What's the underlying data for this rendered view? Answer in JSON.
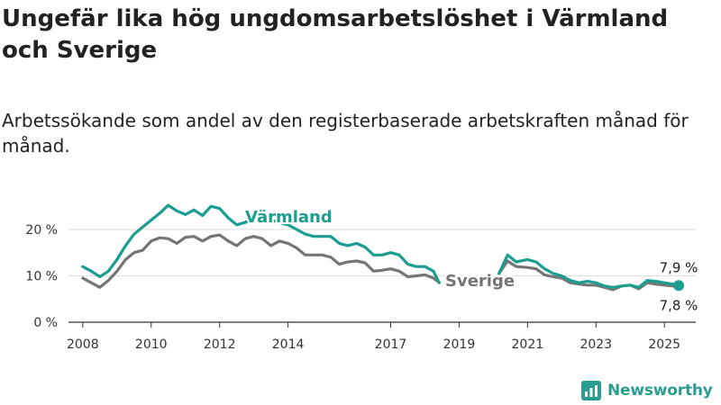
{
  "title": "Ungefär lika hög ungdomsarbetslöshet i Värmland och Sverige",
  "subtitle": "Arbetssökande som andel av den registerbaserade arbetskraften månad för månad.",
  "brand": {
    "name": "Newsworthy",
    "color": "#2a9d8f"
  },
  "colors": {
    "varmland": "#1a9e8f",
    "sverige": "#757575",
    "axis": "#333333",
    "grid": "#dddddd"
  },
  "chart_data": {
    "type": "line",
    "x_ticks": [
      "2008",
      "2010",
      "2012",
      "2014",
      "2017",
      "2019",
      "2021",
      "2023",
      "2025"
    ],
    "y_ticks": [
      "0 %",
      "10 %",
      "20 %"
    ],
    "ylim": [
      0,
      26
    ],
    "xlim": [
      "2007-08",
      "2025-12"
    ],
    "grid": true,
    "series": [
      {
        "name": "Värmland",
        "end_label": "7,9 %",
        "points": [
          {
            "x": "2008-01",
            "y": 12.0
          },
          {
            "x": "2008-04",
            "y": 11.0
          },
          {
            "x": "2008-07",
            "y": 9.8
          },
          {
            "x": "2008-10",
            "y": 11.0
          },
          {
            "x": "2009-01",
            "y": 13.5
          },
          {
            "x": "2009-04",
            "y": 16.5
          },
          {
            "x": "2009-07",
            "y": 19.0
          },
          {
            "x": "2009-10",
            "y": 20.5
          },
          {
            "x": "2010-01",
            "y": 22.0
          },
          {
            "x": "2010-04",
            "y": 23.5
          },
          {
            "x": "2010-07",
            "y": 25.2
          },
          {
            "x": "2010-10",
            "y": 24.0
          },
          {
            "x": "2011-01",
            "y": 23.2
          },
          {
            "x": "2011-04",
            "y": 24.2
          },
          {
            "x": "2011-07",
            "y": 23.0
          },
          {
            "x": "2011-10",
            "y": 25.0
          },
          {
            "x": "2012-01",
            "y": 24.5
          },
          {
            "x": "2012-04",
            "y": 22.5
          },
          {
            "x": "2012-07",
            "y": 21.0
          },
          {
            "x": "2012-10",
            "y": 21.5
          },
          {
            "x": "2013-01",
            "y": 22.5
          },
          {
            "x": "2013-04",
            "y": 23.0
          },
          {
            "x": "2013-07",
            "y": 22.0
          },
          {
            "x": "2013-10",
            "y": 21.5
          },
          {
            "x": "2014-01",
            "y": 21.0
          },
          {
            "x": "2014-04",
            "y": 20.0
          },
          {
            "x": "2014-07",
            "y": 19.0
          },
          {
            "x": "2014-10",
            "y": 18.5
          },
          {
            "x": "2015-01",
            "y": 18.5
          },
          {
            "x": "2015-04",
            "y": 18.5
          },
          {
            "x": "2015-07",
            "y": 17.0
          },
          {
            "x": "2015-10",
            "y": 16.5
          },
          {
            "x": "2016-01",
            "y": 17.0
          },
          {
            "x": "2016-04",
            "y": 16.2
          },
          {
            "x": "2016-07",
            "y": 14.5
          },
          {
            "x": "2016-10",
            "y": 14.5
          },
          {
            "x": "2017-01",
            "y": 15.0
          },
          {
            "x": "2017-04",
            "y": 14.5
          },
          {
            "x": "2017-07",
            "y": 12.5
          },
          {
            "x": "2017-10",
            "y": 12.0
          },
          {
            "x": "2018-01",
            "y": 12.0
          },
          {
            "x": "2018-04",
            "y": 11.0
          },
          {
            "x": "2018-06",
            "y": 8.5
          },
          {
            "x": "2020-03",
            "y": 10.5
          },
          {
            "x": "2020-06",
            "y": 14.5
          },
          {
            "x": "2020-09",
            "y": 13.0
          },
          {
            "x": "2021-01",
            "y": 13.5
          },
          {
            "x": "2021-04",
            "y": 13.0
          },
          {
            "x": "2021-07",
            "y": 11.5
          },
          {
            "x": "2021-10",
            "y": 10.5
          },
          {
            "x": "2022-01",
            "y": 10.0
          },
          {
            "x": "2022-04",
            "y": 9.0
          },
          {
            "x": "2022-07",
            "y": 8.5
          },
          {
            "x": "2022-10",
            "y": 8.8
          },
          {
            "x": "2023-01",
            "y": 8.5
          },
          {
            "x": "2023-04",
            "y": 7.8
          },
          {
            "x": "2023-07",
            "y": 7.5
          },
          {
            "x": "2023-10",
            "y": 7.8
          },
          {
            "x": "2024-01",
            "y": 8.0
          },
          {
            "x": "2024-04",
            "y": 7.5
          },
          {
            "x": "2024-07",
            "y": 9.0
          },
          {
            "x": "2024-10",
            "y": 8.8
          },
          {
            "x": "2025-01",
            "y": 8.5
          },
          {
            "x": "2025-04",
            "y": 8.2
          },
          {
            "x": "2025-06",
            "y": 7.9
          }
        ]
      },
      {
        "name": "Sverige",
        "end_label": "7,8 %",
        "points": [
          {
            "x": "2008-01",
            "y": 9.5
          },
          {
            "x": "2008-04",
            "y": 8.5
          },
          {
            "x": "2008-07",
            "y": 7.5
          },
          {
            "x": "2008-10",
            "y": 9.0
          },
          {
            "x": "2009-01",
            "y": 11.0
          },
          {
            "x": "2009-04",
            "y": 13.5
          },
          {
            "x": "2009-07",
            "y": 15.0
          },
          {
            "x": "2009-10",
            "y": 15.5
          },
          {
            "x": "2010-01",
            "y": 17.5
          },
          {
            "x": "2010-04",
            "y": 18.2
          },
          {
            "x": "2010-07",
            "y": 18.0
          },
          {
            "x": "2010-10",
            "y": 17.0
          },
          {
            "x": "2011-01",
            "y": 18.3
          },
          {
            "x": "2011-04",
            "y": 18.5
          },
          {
            "x": "2011-07",
            "y": 17.5
          },
          {
            "x": "2011-10",
            "y": 18.5
          },
          {
            "x": "2012-01",
            "y": 18.8
          },
          {
            "x": "2012-04",
            "y": 17.5
          },
          {
            "x": "2012-07",
            "y": 16.5
          },
          {
            "x": "2012-10",
            "y": 18.0
          },
          {
            "x": "2013-01",
            "y": 18.5
          },
          {
            "x": "2013-04",
            "y": 18.0
          },
          {
            "x": "2013-07",
            "y": 16.5
          },
          {
            "x": "2013-10",
            "y": 17.5
          },
          {
            "x": "2014-01",
            "y": 17.0
          },
          {
            "x": "2014-04",
            "y": 16.0
          },
          {
            "x": "2014-07",
            "y": 14.5
          },
          {
            "x": "2014-10",
            "y": 14.5
          },
          {
            "x": "2015-01",
            "y": 14.5
          },
          {
            "x": "2015-04",
            "y": 14.0
          },
          {
            "x": "2015-07",
            "y": 12.5
          },
          {
            "x": "2015-10",
            "y": 13.0
          },
          {
            "x": "2016-01",
            "y": 13.2
          },
          {
            "x": "2016-04",
            "y": 12.8
          },
          {
            "x": "2016-07",
            "y": 11.0
          },
          {
            "x": "2016-10",
            "y": 11.2
          },
          {
            "x": "2017-01",
            "y": 11.5
          },
          {
            "x": "2017-04",
            "y": 11.0
          },
          {
            "x": "2017-07",
            "y": 9.8
          },
          {
            "x": "2017-10",
            "y": 10.0
          },
          {
            "x": "2018-01",
            "y": 10.2
          },
          {
            "x": "2018-04",
            "y": 9.5
          },
          {
            "x": "2018-06",
            "y": 8.6
          },
          {
            "x": "2020-03",
            "y": 10.5
          },
          {
            "x": "2020-06",
            "y": 13.2
          },
          {
            "x": "2020-09",
            "y": 12.0
          },
          {
            "x": "2021-01",
            "y": 11.8
          },
          {
            "x": "2021-04",
            "y": 11.5
          },
          {
            "x": "2021-07",
            "y": 10.2
          },
          {
            "x": "2021-10",
            "y": 9.8
          },
          {
            "x": "2022-01",
            "y": 9.5
          },
          {
            "x": "2022-04",
            "y": 8.5
          },
          {
            "x": "2022-07",
            "y": 8.2
          },
          {
            "x": "2022-10",
            "y": 8.0
          },
          {
            "x": "2023-01",
            "y": 8.0
          },
          {
            "x": "2023-04",
            "y": 7.5
          },
          {
            "x": "2023-07",
            "y": 7.0
          },
          {
            "x": "2023-10",
            "y": 7.8
          },
          {
            "x": "2024-01",
            "y": 8.0
          },
          {
            "x": "2024-04",
            "y": 7.2
          },
          {
            "x": "2024-07",
            "y": 8.5
          },
          {
            "x": "2024-10",
            "y": 8.2
          },
          {
            "x": "2025-01",
            "y": 8.0
          },
          {
            "x": "2025-04",
            "y": 7.8
          },
          {
            "x": "2025-06",
            "y": 7.8
          }
        ]
      }
    ]
  }
}
